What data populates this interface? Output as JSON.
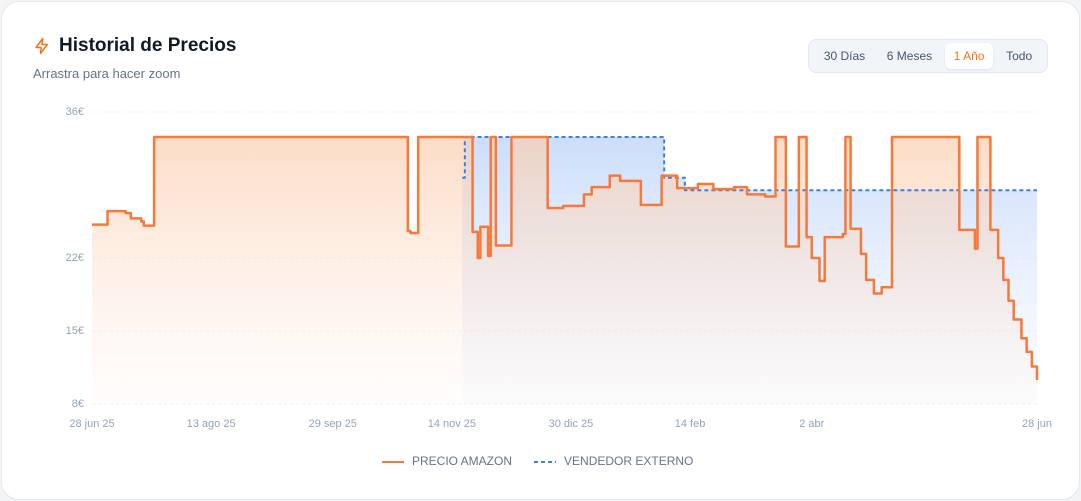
{
  "header": {
    "title": "Historial de Precios",
    "subtitle": "Arrastra para hacer zoom"
  },
  "range_buttons": [
    {
      "label": "30 Días",
      "active": false
    },
    {
      "label": "6 Meses",
      "active": false
    },
    {
      "label": "1 Año",
      "active": true
    },
    {
      "label": "Todo",
      "active": false
    }
  ],
  "chart_data": {
    "type": "line",
    "step": true,
    "xlim": [
      "2025-06-28",
      "2026-06-28"
    ],
    "xticks": [
      {
        "value": "2025-06-28",
        "label": "28 jun 25"
      },
      {
        "value": "2025-08-13",
        "label": "13 ago 25"
      },
      {
        "value": "2025-09-29",
        "label": "29 sep 25"
      },
      {
        "value": "2025-11-14",
        "label": "14 nov 25"
      },
      {
        "value": "2025-12-30",
        "label": "30 dic 25"
      },
      {
        "value": "2026-02-14",
        "label": "14 feb"
      },
      {
        "value": "2026-04-02",
        "label": "2 abr"
      },
      {
        "value": "2026-06-28",
        "label": "28 jun"
      }
    ],
    "ylim": [
      8,
      36
    ],
    "yticks": [
      {
        "value": 8,
        "label": "8€"
      },
      {
        "value": 15,
        "label": "15€"
      },
      {
        "value": 22,
        "label": "22€"
      },
      {
        "value": 36,
        "label": "36€"
      }
    ],
    "grid": true,
    "series": [
      {
        "name": "PRECIO AMAZON",
        "color": "#f6793a",
        "dash": false,
        "x": [
          "2025-06-28",
          "2025-07-04",
          "2025-07-11",
          "2025-07-13",
          "2025-07-17",
          "2025-07-18",
          "2025-07-22",
          "2025-10-28",
          "2025-10-29",
          "2025-11-01",
          "2025-11-22",
          "2025-11-24",
          "2025-11-25",
          "2025-11-28",
          "2025-11-29",
          "2025-12-01",
          "2025-12-07",
          "2025-12-21",
          "2025-12-27",
          "2026-01-04",
          "2026-01-07",
          "2026-01-14",
          "2026-01-18",
          "2026-01-26",
          "2026-02-03",
          "2026-02-09",
          "2026-02-17",
          "2026-02-23",
          "2026-03-03",
          "2026-03-08",
          "2026-03-15",
          "2026-03-19",
          "2026-03-23",
          "2026-03-28",
          "2026-03-31",
          "2026-04-02",
          "2026-04-05",
          "2026-04-07",
          "2026-04-14",
          "2026-04-15",
          "2026-04-17",
          "2026-04-21",
          "2026-04-23",
          "2026-04-26",
          "2026-04-29",
          "2026-05-03",
          "2026-05-29",
          "2026-06-04",
          "2026-06-05",
          "2026-06-10",
          "2026-06-13",
          "2026-06-15",
          "2026-06-17",
          "2026-06-19",
          "2026-06-22",
          "2026-06-24",
          "2026-06-26",
          "2026-06-28"
        ],
        "values": [
          25.2,
          26.5,
          26.3,
          25.8,
          25.5,
          25.1,
          33.6,
          24.6,
          24.4,
          33.6,
          24.5,
          22.0,
          25.0,
          22.2,
          33.6,
          23.2,
          33.6,
          26.8,
          27.0,
          28.1,
          28.8,
          29.9,
          29.4,
          27.1,
          29.9,
          28.7,
          29.1,
          28.6,
          28.8,
          28.1,
          27.9,
          33.6,
          23.1,
          33.6,
          24.0,
          22.0,
          19.8,
          24.0,
          24.3,
          33.6,
          24.8,
          22.4,
          19.9,
          18.6,
          19.2,
          33.6,
          24.7,
          22.9,
          33.6,
          24.7,
          22.0,
          19.9,
          17.9,
          16.1,
          14.3,
          13.0,
          11.6,
          10.3
        ]
      },
      {
        "name": "VENDEDOR EXTERNO",
        "color": "#3b7ee8",
        "dash": true,
        "x": [
          "2025-11-18",
          "2025-11-19",
          "2026-02-04",
          "2026-02-12",
          "2026-06-28"
        ],
        "values": [
          29.7,
          33.6,
          29.7,
          28.5,
          28.5
        ]
      }
    ]
  }
}
